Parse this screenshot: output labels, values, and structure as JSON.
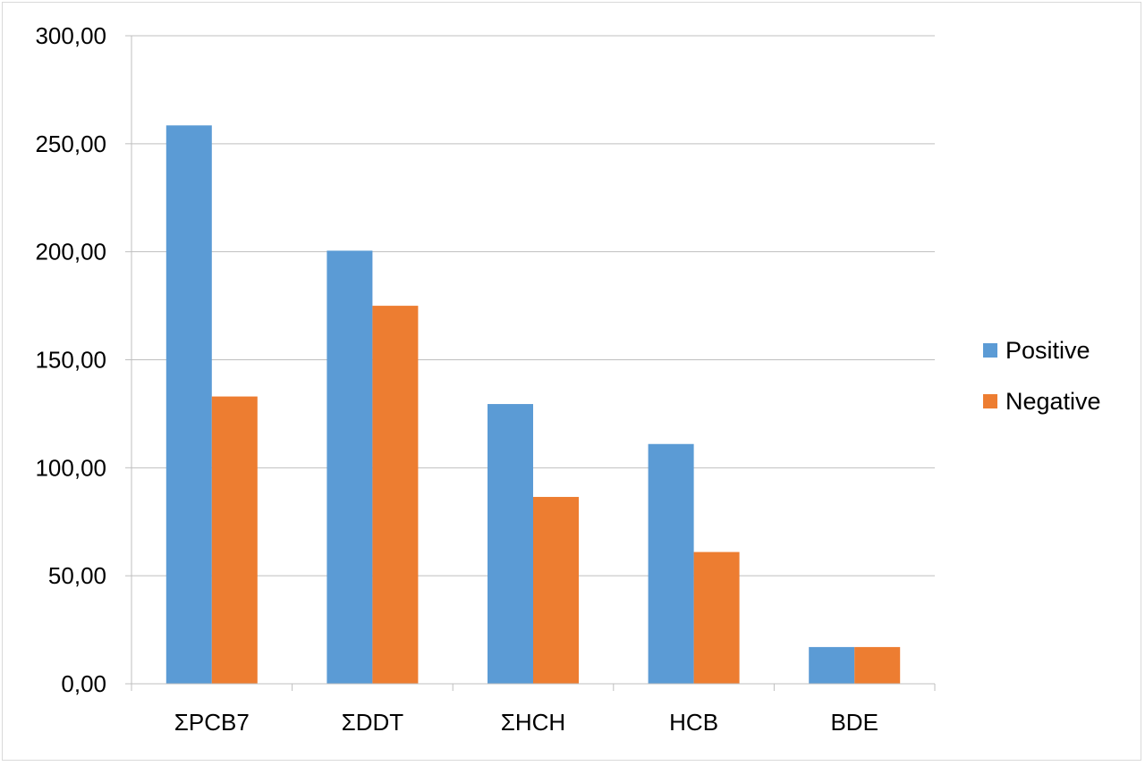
{
  "chart_data": {
    "type": "bar",
    "title": "",
    "xlabel": "",
    "ylabel": "",
    "categories": [
      "ΣPCB7",
      "ΣDDT",
      "ΣHCH",
      "HCB",
      "BDE"
    ],
    "series": [
      {
        "name": "Positive",
        "color": "#5b9bd5",
        "values": [
          258.5,
          200.5,
          129.5,
          111.0,
          17.0
        ]
      },
      {
        "name": "Negative",
        "color": "#ed7d31",
        "values": [
          133.0,
          175.0,
          86.5,
          61.0,
          17.0
        ]
      }
    ],
    "ylim": [
      0,
      300
    ],
    "yticks": [
      0,
      50,
      100,
      150,
      200,
      250,
      300
    ],
    "ytick_labels": [
      "0,00",
      "50,00",
      "100,00",
      "150,00",
      "200,00",
      "250,00",
      "300,00"
    ],
    "grid": true,
    "legend_position": "right"
  }
}
